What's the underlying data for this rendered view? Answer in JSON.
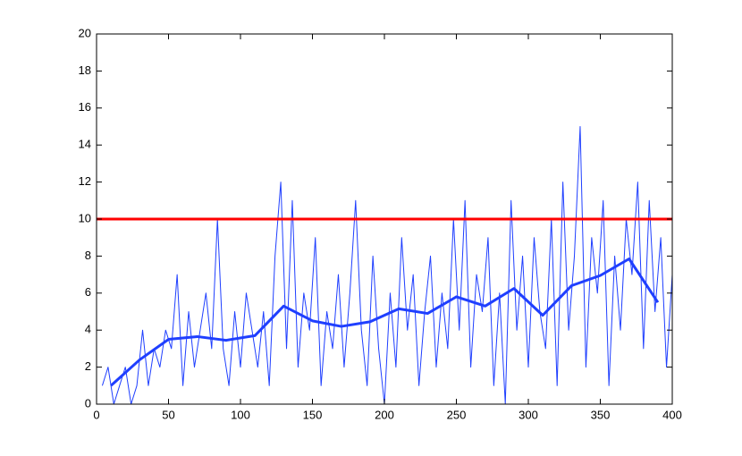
{
  "chart_data": {
    "type": "line",
    "xlim": [
      0,
      400
    ],
    "xticks": [
      0,
      50,
      100,
      150,
      200,
      250,
      300,
      350,
      400
    ],
    "ylim": [
      0,
      20
    ],
    "yticks": [
      0,
      2,
      4,
      6,
      8,
      10,
      12,
      14,
      16,
      18,
      20
    ],
    "grid": false,
    "series": [
      {
        "color": "#1f3fff",
        "linewidth": 1,
        "x": [
          4,
          8,
          12,
          16,
          20,
          24,
          28,
          32,
          36,
          40,
          44,
          48,
          52,
          56,
          60,
          64,
          68,
          72,
          76,
          80,
          84,
          88,
          92,
          96,
          100,
          104,
          108,
          112,
          116,
          120,
          124,
          128,
          132,
          136,
          140,
          144,
          148,
          152,
          156,
          160,
          164,
          168,
          172,
          176,
          180,
          184,
          188,
          192,
          196,
          200,
          204,
          208,
          212,
          216,
          220,
          224,
          228,
          232,
          236,
          240,
          244,
          248,
          252,
          256,
          260,
          264,
          268,
          272,
          276,
          280,
          284,
          288,
          292,
          296,
          300,
          304,
          308,
          312,
          316,
          320,
          324,
          328,
          332,
          336,
          340,
          344,
          348,
          352,
          356,
          360,
          364,
          368,
          372,
          376,
          380,
          384,
          388,
          392,
          396,
          400
        ],
        "values": [
          1,
          2,
          0,
          1,
          2,
          0,
          1,
          4,
          1,
          3,
          2,
          4,
          3,
          7,
          1,
          5,
          2,
          4,
          6,
          3,
          10,
          3,
          1,
          5,
          2,
          6,
          4,
          2,
          5,
          1,
          8,
          12,
          3,
          11,
          2,
          6,
          4,
          9,
          1,
          5,
          3,
          7,
          2,
          6,
          11,
          4,
          1,
          8,
          3,
          0,
          6,
          2,
          9,
          4,
          7,
          1,
          5,
          8,
          2,
          6,
          3,
          10,
          4,
          11,
          2,
          7,
          5,
          9,
          1,
          6,
          0,
          11,
          4,
          8,
          2,
          9,
          5,
          3,
          10,
          1,
          12,
          4,
          8,
          15,
          2,
          9,
          6,
          11,
          1,
          8,
          4,
          10,
          7,
          12,
          3,
          11,
          5,
          9,
          2,
          7
        ]
      },
      {
        "color": "#1f3fff",
        "linewidth": 3,
        "x": [
          10,
          30,
          50,
          70,
          90,
          110,
          130,
          150,
          170,
          190,
          210,
          230,
          250,
          270,
          290,
          310,
          330,
          350,
          370,
          390
        ],
        "values": [
          1.0,
          2.4,
          3.5,
          3.65,
          3.45,
          3.7,
          5.3,
          4.5,
          4.2,
          4.45,
          5.15,
          4.9,
          5.8,
          5.3,
          6.25,
          4.8,
          6.4,
          6.95,
          7.85,
          5.5
        ]
      },
      {
        "color": "#ff0000",
        "linewidth": 3,
        "x": [
          0,
          400
        ],
        "values": [
          10,
          10
        ]
      }
    ]
  }
}
